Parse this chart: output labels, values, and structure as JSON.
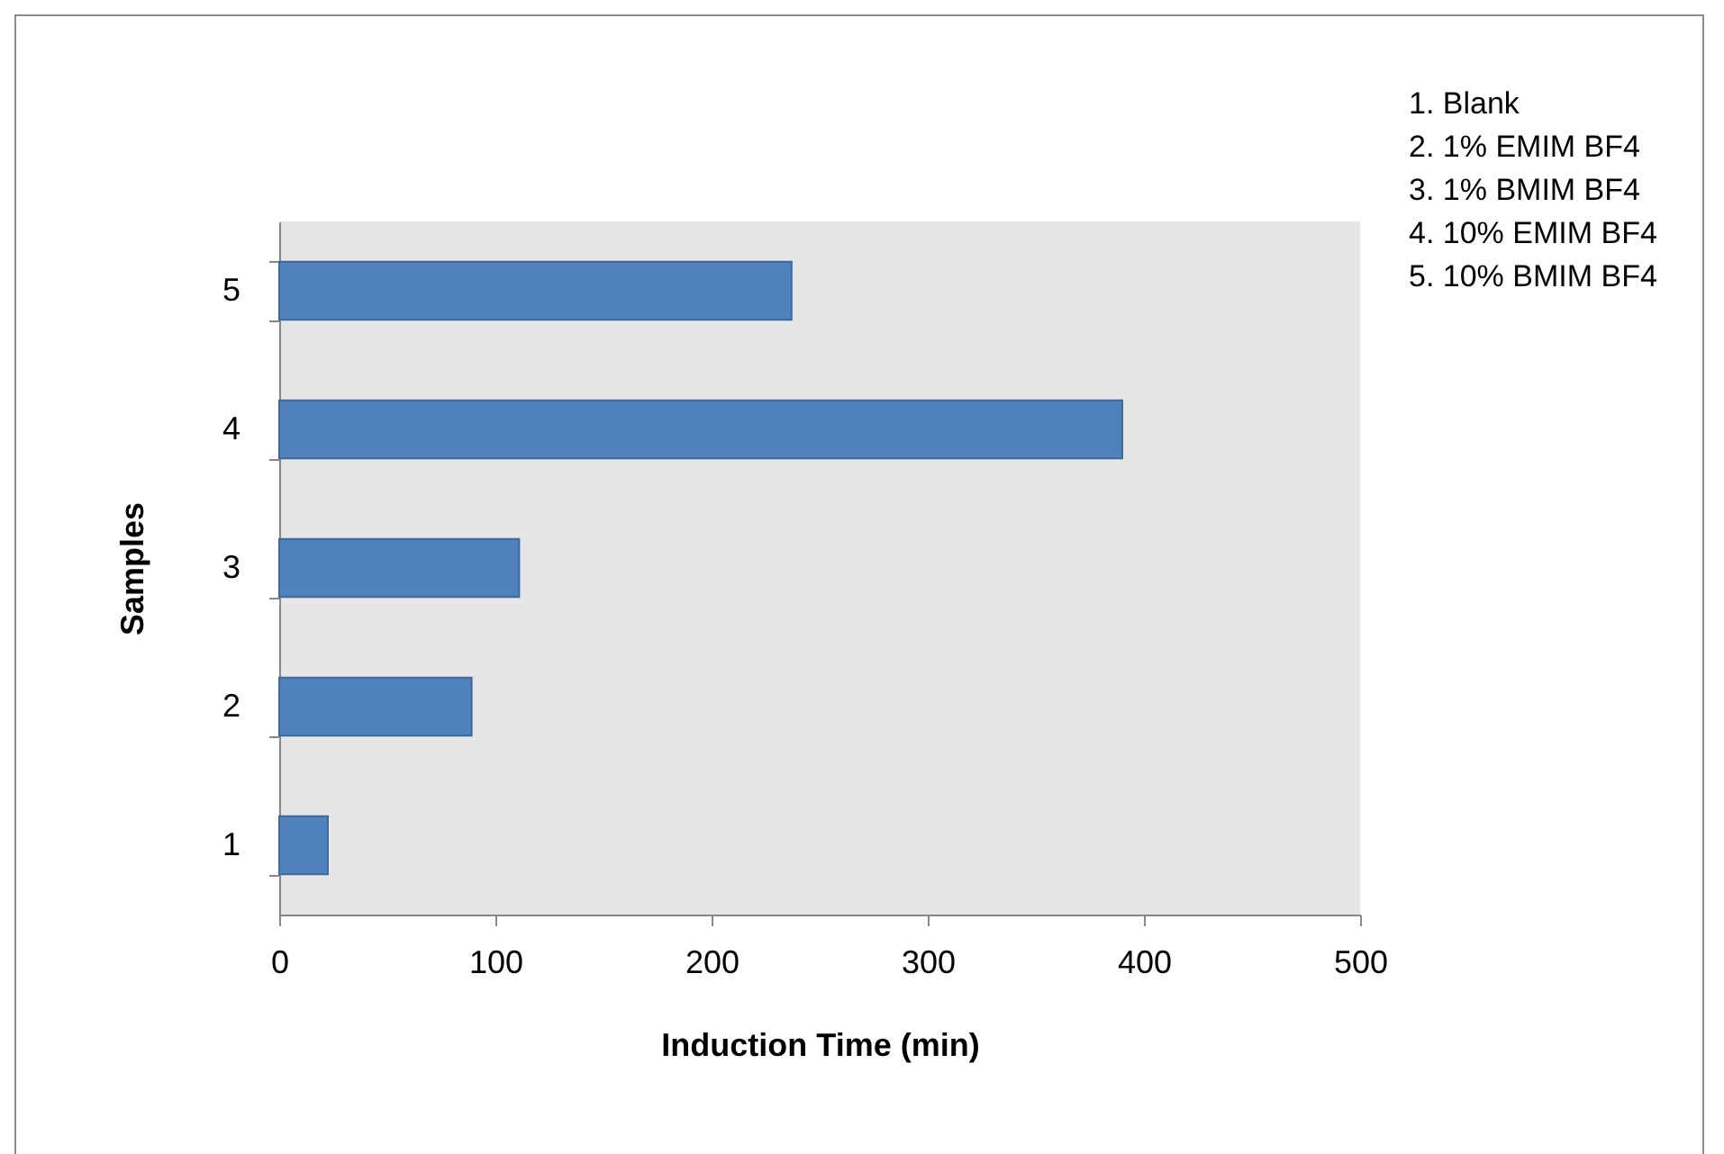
{
  "chart_data": {
    "type": "bar",
    "orientation": "horizontal",
    "xlabel": "Induction Time (min)",
    "ylabel": "Samples",
    "categories": [
      "5",
      "4",
      "3",
      "2",
      "1"
    ],
    "values": [
      237,
      390,
      111,
      89,
      22.5
    ],
    "color": "#4f81bd",
    "xlim": [
      0,
      500
    ],
    "xticks": [
      0,
      100,
      200,
      300,
      400,
      500
    ],
    "grid": false,
    "annotations": [
      "1. Blank",
      "2. 1% EMIM BF4",
      "3. 1% BMIM BF4",
      "4. 10% EMIM BF4",
      "5. 10% BMIM BF4"
    ]
  }
}
